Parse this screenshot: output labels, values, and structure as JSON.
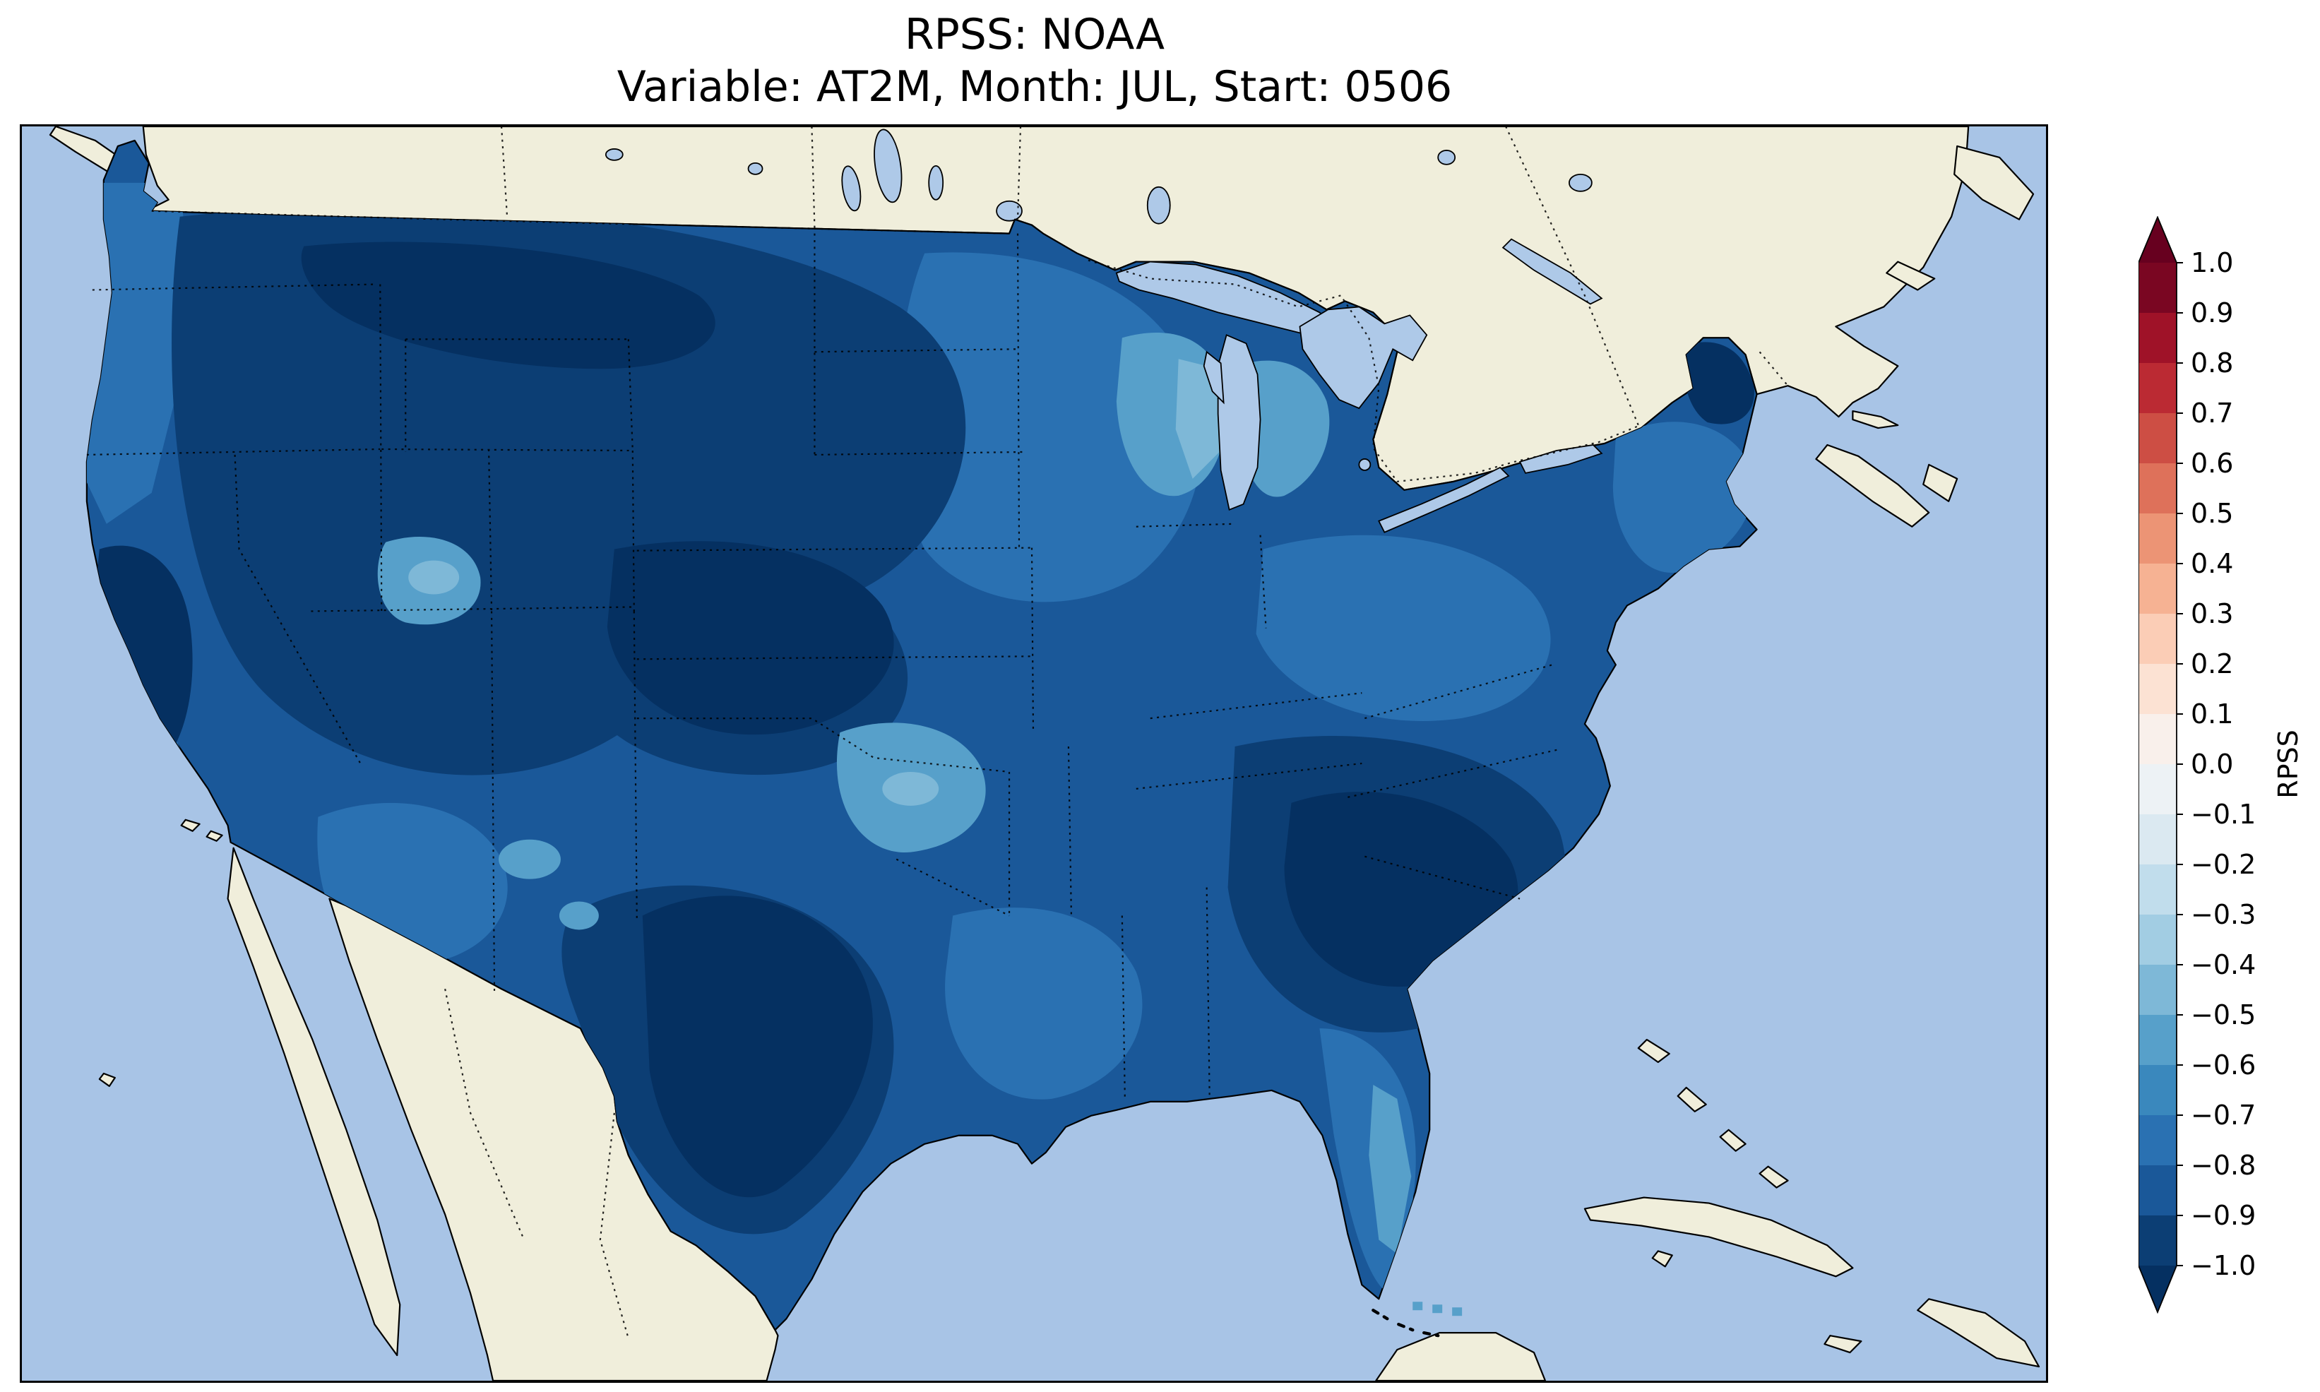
{
  "figure": {
    "title": "RPSS: NOAA",
    "subtitle": "Variable: AT2M, Month: JUL, Start: 0506"
  },
  "colorbar": {
    "label": "RPSS",
    "ticks": [
      "1.0",
      "0.9",
      "0.8",
      "0.7",
      "0.6",
      "0.5",
      "0.4",
      "0.3",
      "0.2",
      "0.1",
      "0.0",
      "−0.1",
      "−0.2",
      "−0.3",
      "−0.4",
      "−0.5",
      "−0.6",
      "−0.7",
      "−0.8",
      "−0.9",
      "−1.0"
    ],
    "segment_colors_top_to_bottom": [
      "#7a0622",
      "#9f1228",
      "#bb2a33",
      "#cd4e44",
      "#de715a",
      "#ec9475",
      "#f6b293",
      "#fbcdb6",
      "#fce2d3",
      "#f9f0eb",
      "#edf2f5",
      "#dbe9f1",
      "#c1ddec",
      "#a2cde3",
      "#7eb8d7",
      "#57a0ca",
      "#3a88bd",
      "#2a71b2",
      "#1a5899",
      "#0c3e74"
    ],
    "extend_over_color": "#67001f",
    "extend_under_color": "#053061"
  },
  "chart_data": {
    "type": "heatmap",
    "title": "RPSS: NOAA",
    "subtitle": "Variable: AT2M, Month: JUL, Start: 0506",
    "model": "NOAA",
    "variable": "AT2M",
    "month": "JUL",
    "start": "0506",
    "region": "Contiguous United States map",
    "colormap": "RdBu_r (red = positive, blue = negative)",
    "colorbar_label": "RPSS",
    "colorbar_range": [
      -1.0,
      1.0
    ],
    "colorbar_tick_step": 0.1,
    "colorbar_extends_beyond_range": true,
    "observed_value_range": [
      -1.0,
      -0.2
    ],
    "no_positive_values_visible": true,
    "summary": "RPSS is negative over essentially the entire CONUS. Most of the country sits in the -0.7 to -1.0 range (dark blue). Moderately less negative values (-0.3 to -0.6, lighter blues) appear over Wisconsin and the Lake Michigan shores, central Utah, parts of New Mexico, the Oklahoma/Ozarks area, coastal California and peninsular Florida.",
    "regional_estimates": [
      {
        "region": "Pacific Northwest coast",
        "rpss": -0.8
      },
      {
        "region": "Montana / Northern Rockies",
        "rpss": -1.0
      },
      {
        "region": "Great Basin (NV/UT)",
        "rpss": -0.9
      },
      {
        "region": "Central Utah patch",
        "rpss": -0.5
      },
      {
        "region": "California coast",
        "rpss": -0.7
      },
      {
        "region": "Sierra Nevada / N. California",
        "rpss": -1.0
      },
      {
        "region": "Arizona",
        "rpss": -0.8
      },
      {
        "region": "New Mexico (local patches)",
        "rpss": -0.5
      },
      {
        "region": "Great Plains (Dakotas/NE/KS)",
        "rpss": -0.95
      },
      {
        "region": "Texas",
        "rpss": -0.9
      },
      {
        "region": "Oklahoma / Ozarks patch",
        "rpss": -0.5
      },
      {
        "region": "Minnesota / Iowa / Illinois",
        "rpss": -0.75
      },
      {
        "region": "Wisconsin / Lake Michigan shore",
        "rpss": -0.4
      },
      {
        "region": "Michigan lower peninsula",
        "rpss": -0.55
      },
      {
        "region": "Ohio Valley",
        "rpss": -0.75
      },
      {
        "region": "Southeast core (GA/Carolinas)",
        "rpss": -1.0
      },
      {
        "region": "Gulf Coast (LA/MS/AL)",
        "rpss": -0.8
      },
      {
        "region": "Florida peninsula",
        "rpss": -0.6
      },
      {
        "region": "Mid-Atlantic",
        "rpss": -0.8
      },
      {
        "region": "New England coast",
        "rpss": -0.7
      },
      {
        "region": "Northern Maine",
        "rpss": -0.95
      }
    ]
  },
  "map": {
    "colors": {
      "ocean": "#a8c4e6",
      "land": "#f0eedb",
      "lake": "#aec9e8",
      "coastline": "#000000",
      "us_base": "#1a5899",
      "us_dark": "#0c3e74",
      "us_darkest": "#053061",
      "us_medium": "#2a71b2",
      "us_light": "#57a0ca",
      "us_lighter": "#7eb8d7",
      "us_lightest": "#a2cde3"
    }
  }
}
